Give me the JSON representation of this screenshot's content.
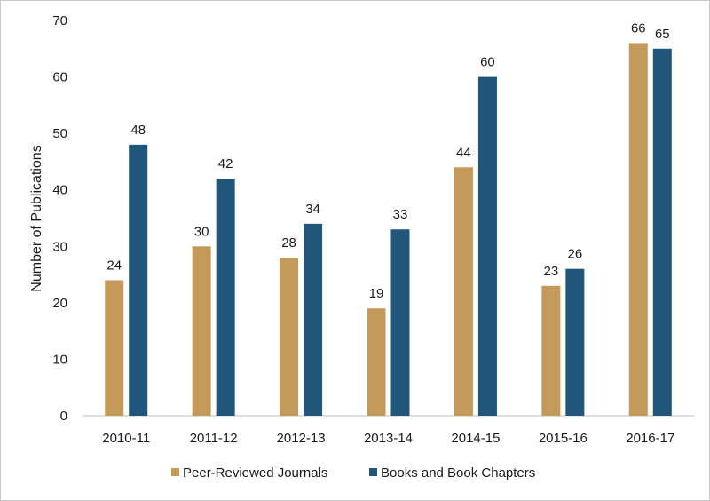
{
  "chart_data": {
    "type": "bar",
    "categories": [
      "2010-11",
      "2011-12",
      "2012-13",
      "2013-14",
      "2014-15",
      "2015-16",
      "2016-17"
    ],
    "series": [
      {
        "name": "Peer-Reviewed Journals",
        "color": "#c49a5a",
        "values": [
          24,
          30,
          28,
          19,
          44,
          23,
          66
        ]
      },
      {
        "name": "Books and Book Chapters",
        "color": "#1f567a",
        "values": [
          48,
          42,
          34,
          33,
          60,
          26,
          65
        ]
      }
    ],
    "ylabel": "Number of Publications",
    "xlabel": "",
    "ylim": [
      0,
      70
    ],
    "yticks": [
      0,
      10,
      20,
      30,
      40,
      50,
      60,
      70
    ],
    "grid": false,
    "data_labels": true,
    "legend": "bottom"
  }
}
